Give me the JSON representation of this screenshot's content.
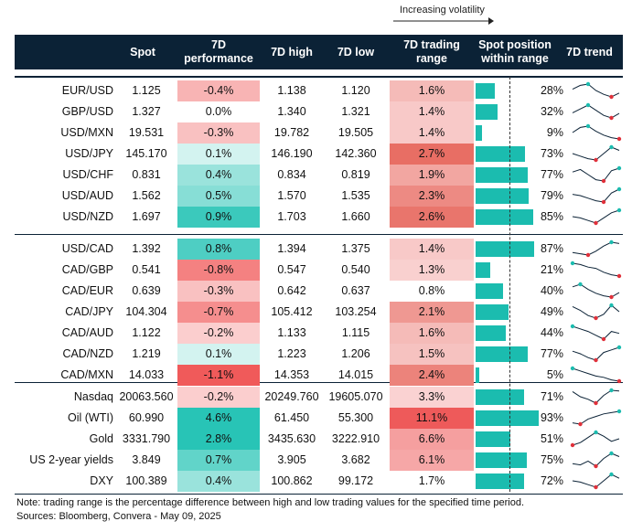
{
  "legend": {
    "volatility_label": "Increasing volatility"
  },
  "columns": {
    "spot": "Spot",
    "performance": [
      "7D",
      "performance"
    ],
    "high": "7D high",
    "low": "7D low",
    "range": [
      "7D trading",
      "range"
    ],
    "position": [
      "Spot position",
      "within range"
    ],
    "trend": "7D trend"
  },
  "colors": {
    "header_bg": "#0b2236",
    "bar": "#1bbcaf",
    "spark_line": "#0b2236",
    "spark_high": "#1bbcaf",
    "spark_low": "#e0303a"
  },
  "groups": [
    {
      "rows": [
        {
          "name": "EUR/USD",
          "spot": "1.125",
          "perf": "-0.4%",
          "perf_value": -0.4,
          "high": "1.138",
          "low": "1.120",
          "range": "1.6%",
          "range_value": 1.6,
          "pos": "28%",
          "pos_value": 28,
          "trend": [
            0.6,
            0.9,
            1.0,
            0.5,
            0.2,
            0.0,
            0.3
          ],
          "trend_high": 2,
          "trend_low": 5
        },
        {
          "name": "GBP/USD",
          "spot": "1.327",
          "perf": "0.0%",
          "perf_value": 0.0,
          "high": "1.340",
          "low": "1.321",
          "range": "1.4%",
          "range_value": 1.4,
          "pos": "32%",
          "pos_value": 32,
          "trend": [
            0.4,
            0.7,
            1.0,
            0.6,
            0.2,
            0.0,
            0.35
          ],
          "trend_high": 2,
          "trend_low": 5
        },
        {
          "name": "USD/MXN",
          "spot": "19.531",
          "perf": "-0.3%",
          "perf_value": -0.3,
          "high": "19.782",
          "low": "19.505",
          "range": "1.4%",
          "range_value": 1.4,
          "pos": "9%",
          "pos_value": 9,
          "trend": [
            0.5,
            0.9,
            1.0,
            0.6,
            0.3,
            0.1,
            0.0
          ],
          "trend_high": 2,
          "trend_low": 6
        },
        {
          "name": "USD/JPY",
          "spot": "145.170",
          "perf": "0.1%",
          "perf_value": 0.1,
          "high": "146.190",
          "low": "142.360",
          "range": "2.7%",
          "range_value": 2.7,
          "pos": "73%",
          "pos_value": 73,
          "trend": [
            0.5,
            0.3,
            0.1,
            0.0,
            0.5,
            1.0,
            0.75
          ],
          "trend_high": 5,
          "trend_low": 3
        },
        {
          "name": "USD/CHF",
          "spot": "0.831",
          "perf": "0.4%",
          "perf_value": 0.4,
          "high": "0.834",
          "low": "0.819",
          "range": "1.9%",
          "range_value": 1.9,
          "pos": "77%",
          "pos_value": 77,
          "trend": [
            0.7,
            0.9,
            0.5,
            0.1,
            0.0,
            0.8,
            1.0
          ],
          "trend_high": 6,
          "trend_low": 4
        },
        {
          "name": "USD/AUD",
          "spot": "1.562",
          "perf": "0.5%",
          "perf_value": 0.5,
          "high": "1.570",
          "low": "1.535",
          "range": "2.3%",
          "range_value": 2.3,
          "pos": "79%",
          "pos_value": 79,
          "trend": [
            0.6,
            0.5,
            0.3,
            0.1,
            0.0,
            0.7,
            1.0
          ],
          "trend_high": 6,
          "trend_low": 4
        },
        {
          "name": "USD/NZD",
          "spot": "1.697",
          "perf": "0.9%",
          "perf_value": 0.9,
          "high": "1.703",
          "low": "1.660",
          "range": "2.6%",
          "range_value": 2.6,
          "pos": "85%",
          "pos_value": 85,
          "trend": [
            0.5,
            0.4,
            0.2,
            0.0,
            0.4,
            0.8,
            1.0
          ],
          "trend_high": 6,
          "trend_low": 3
        }
      ]
    },
    {
      "rows": [
        {
          "name": "USD/CAD",
          "spot": "1.392",
          "perf": "0.8%",
          "perf_value": 0.8,
          "high": "1.394",
          "low": "1.375",
          "range": "1.4%",
          "range_value": 1.4,
          "pos": "87%",
          "pos_value": 87,
          "trend": [
            0.2,
            0.1,
            0.0,
            0.3,
            0.7,
            1.0,
            0.9
          ],
          "trend_high": 5,
          "trend_low": 2
        },
        {
          "name": "CAD/GBP",
          "spot": "0.541",
          "perf": "-0.8%",
          "perf_value": -0.8,
          "high": "0.547",
          "low": "0.540",
          "range": "1.3%",
          "range_value": 1.3,
          "pos": "21%",
          "pos_value": 21,
          "trend": [
            1.0,
            0.9,
            0.7,
            0.6,
            0.3,
            0.1,
            0.0
          ],
          "trend_high": 0,
          "trend_low": 6
        },
        {
          "name": "CAD/EUR",
          "spot": "0.639",
          "perf": "-0.3%",
          "perf_value": -0.3,
          "high": "0.642",
          "low": "0.637",
          "range": "0.8%",
          "range_value": 0.8,
          "pos": "40%",
          "pos_value": 40,
          "trend": [
            0.8,
            1.0,
            0.6,
            0.3,
            0.1,
            0.0,
            0.35
          ],
          "trend_high": 1,
          "trend_low": 5
        },
        {
          "name": "CAD/JPY",
          "spot": "104.304",
          "perf": "-0.7%",
          "perf_value": -0.7,
          "high": "105.412",
          "low": "103.254",
          "range": "2.1%",
          "range_value": 2.1,
          "pos": "49%",
          "pos_value": 49,
          "trend": [
            0.9,
            0.6,
            0.2,
            0.0,
            0.3,
            1.0,
            0.5
          ],
          "trend_high": 5,
          "trend_low": 3
        },
        {
          "name": "CAD/AUD",
          "spot": "1.122",
          "perf": "-0.2%",
          "perf_value": -0.2,
          "high": "1.133",
          "low": "1.115",
          "range": "1.6%",
          "range_value": 1.6,
          "pos": "44%",
          "pos_value": 44,
          "trend": [
            1.0,
            0.8,
            0.6,
            0.3,
            0.0,
            0.6,
            0.45
          ],
          "trend_high": 0,
          "trend_low": 4
        },
        {
          "name": "CAD/NZD",
          "spot": "1.219",
          "perf": "0.1%",
          "perf_value": 0.1,
          "high": "1.223",
          "low": "1.206",
          "range": "1.5%",
          "range_value": 1.5,
          "pos": "77%",
          "pos_value": 77,
          "trend": [
            0.7,
            0.5,
            0.2,
            0.0,
            0.6,
            0.8,
            1.0
          ],
          "trend_high": 6,
          "trend_low": 3
        },
        {
          "name": "CAD/MXN",
          "spot": "14.033",
          "perf": "-1.1%",
          "perf_value": -1.1,
          "high": "14.353",
          "low": "14.015",
          "range": "2.4%",
          "range_value": 2.4,
          "pos": "5%",
          "pos_value": 5,
          "trend": [
            1.0,
            0.8,
            0.6,
            0.4,
            0.3,
            0.1,
            0.0
          ],
          "trend_high": 0,
          "trend_low": 6
        }
      ]
    },
    {
      "rows": [
        {
          "name": "Nasdaq",
          "spot": "20063.560",
          "perf": "-0.2%",
          "perf_value": -0.2,
          "high": "20249.760",
          "low": "19605.070",
          "range": "3.3%",
          "range_value": 3.3,
          "pos": "71%",
          "pos_value": 71,
          "trend": [
            0.9,
            0.5,
            0.3,
            0.0,
            0.6,
            1.0,
            0.95
          ],
          "trend_high": 5,
          "trend_low": 3
        },
        {
          "name": "Oil (WTI)",
          "spot": "60.990",
          "perf": "4.6%",
          "perf_value": 4.6,
          "high": "61.450",
          "low": "55.300",
          "range": "11.1%",
          "range_value": 11.1,
          "pos": "93%",
          "pos_value": 93,
          "trend": [
            0.1,
            0.0,
            0.4,
            0.6,
            0.8,
            0.9,
            1.0
          ],
          "trend_high": 6,
          "trend_low": 1
        },
        {
          "name": "Gold",
          "spot": "3331.790",
          "perf": "2.8%",
          "perf_value": 2.8,
          "high": "3435.630",
          "low": "3222.910",
          "range": "6.6%",
          "range_value": 6.6,
          "pos": "51%",
          "pos_value": 51,
          "trend": [
            0.0,
            0.2,
            0.6,
            1.0,
            0.7,
            0.3,
            0.5
          ],
          "trend_high": 3,
          "trend_low": 0
        },
        {
          "name": "US 2-year yields",
          "spot": "3.849",
          "perf": "0.7%",
          "perf_value": 0.7,
          "high": "3.905",
          "low": "3.682",
          "range": "6.1%",
          "range_value": 6.1,
          "pos": "75%",
          "pos_value": 75,
          "trend": [
            0.2,
            0.1,
            0.4,
            0.0,
            0.6,
            1.0,
            0.75
          ],
          "trend_high": 5,
          "trend_low": 3
        },
        {
          "name": "DXY",
          "spot": "100.389",
          "perf": "0.4%",
          "perf_value": 0.4,
          "high": "100.862",
          "low": "99.172",
          "range": "1.7%",
          "range_value": 1.7,
          "pos": "72%",
          "pos_value": 72,
          "trend": [
            0.5,
            0.4,
            0.2,
            0.0,
            0.5,
            1.0,
            0.7
          ],
          "trend_high": 5,
          "trend_low": 3
        }
      ]
    }
  ],
  "footnote": {
    "note": "Note: trading range is the percentage difference between high and low trading values for the specified time period.",
    "sources": "Sources: Bloomberg, Convera - May 09, 2025"
  }
}
